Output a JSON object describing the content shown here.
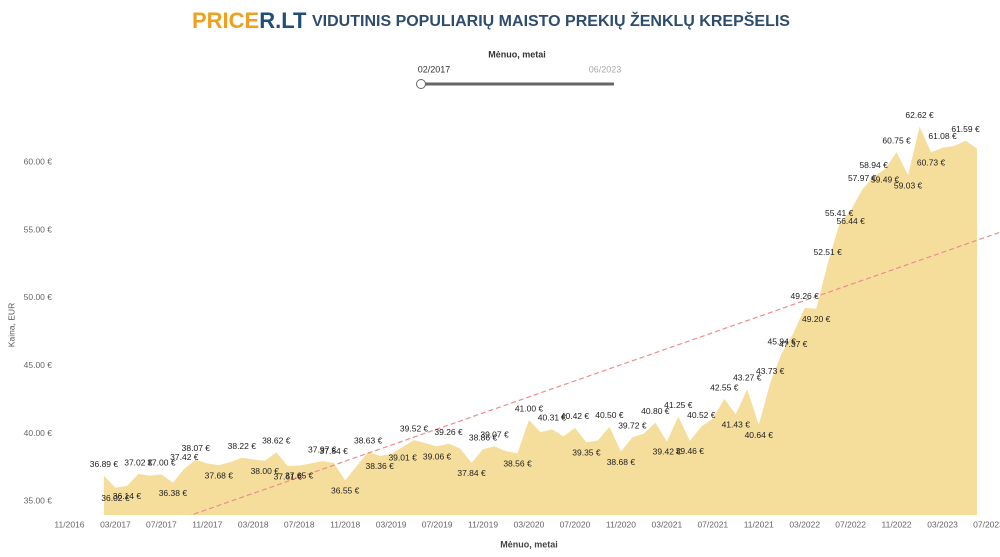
{
  "header": {
    "logo_parts": [
      "PRICE",
      "R.LT"
    ],
    "title": "VIDUTINIS POPULIARIŲ MAISTO PREKIŲ ŽENKLŲ KREPŠELIS"
  },
  "filter": {
    "title": "Mėnuo, metai",
    "from": "02/2017",
    "to": "06/2023"
  },
  "chart_data": {
    "type": "area",
    "x_label": "Mėnuo, metai",
    "y_label": "Kaina, EUR",
    "color": "#f5dd9c",
    "x": [
      "02/2017",
      "03/2017",
      "04/2017",
      "05/2017",
      "06/2017",
      "07/2017",
      "08/2017",
      "09/2017",
      "10/2017",
      "11/2017",
      "12/2017",
      "01/2018",
      "02/2018",
      "03/2018",
      "04/2018",
      "05/2018",
      "06/2018",
      "07/2018",
      "08/2018",
      "09/2018",
      "10/2018",
      "11/2018",
      "12/2018",
      "01/2019",
      "02/2019",
      "03/2019",
      "04/2019",
      "05/2019",
      "06/2019",
      "07/2019",
      "08/2019",
      "09/2019",
      "10/2019",
      "11/2019",
      "12/2019",
      "01/2020",
      "02/2020",
      "03/2020",
      "04/2020",
      "05/2020",
      "06/2020",
      "07/2020",
      "08/2020",
      "09/2020",
      "10/2020",
      "11/2020",
      "12/2020",
      "01/2021",
      "02/2021",
      "03/2021",
      "04/2021",
      "05/2021",
      "06/2021",
      "07/2021",
      "08/2021",
      "09/2021",
      "10/2021",
      "11/2021",
      "12/2021",
      "01/2022",
      "02/2022",
      "03/2022",
      "04/2022",
      "05/2022",
      "06/2022",
      "07/2022",
      "08/2022",
      "09/2022",
      "10/2022",
      "11/2022",
      "12/2022",
      "01/2023",
      "02/2023",
      "03/2023",
      "04/2023",
      "05/2023",
      "06/2023"
    ],
    "values": [
      36.89,
      36.02,
      36.14,
      37.02,
      36.9,
      37.0,
      36.38,
      37.42,
      38.07,
      37.8,
      37.68,
      37.9,
      38.22,
      38.1,
      38.0,
      38.62,
      37.61,
      37.65,
      37.8,
      37.97,
      37.84,
      36.55,
      37.6,
      38.63,
      38.36,
      38.5,
      39.01,
      39.52,
      39.3,
      39.06,
      39.26,
      38.9,
      37.84,
      38.86,
      39.07,
      38.7,
      38.56,
      41.0,
      40.1,
      40.31,
      39.8,
      40.42,
      39.35,
      39.5,
      40.5,
      38.68,
      39.72,
      40.0,
      40.8,
      39.42,
      41.25,
      39.46,
      40.52,
      41.1,
      42.55,
      41.43,
      43.27,
      40.64,
      43.73,
      45.94,
      47.37,
      49.26,
      49.2,
      52.51,
      55.41,
      56.44,
      57.97,
      58.94,
      59.49,
      60.75,
      59.03,
      62.62,
      60.73,
      61.08,
      61.2,
      61.59,
      61.0
    ],
    "value_labels": [
      "36.89 €",
      "36.02 €",
      "36.14 €",
      "37.02 €",
      null,
      "37.00 €",
      "36.38 €",
      "37.42 €",
      "38.07 €",
      null,
      "37.68 €",
      null,
      "38.22 €",
      null,
      "38.00 €",
      "38.62 €",
      "37.61 €",
      "37.65 €",
      null,
      "37.97 €",
      "37.84 €",
      "36.55 €",
      null,
      "38.63 €",
      "38.36 €",
      null,
      "39.01 €",
      "39.52 €",
      null,
      "39.06 €",
      "39.26 €",
      null,
      "37.84 €",
      "38.86 €",
      "39.07 €",
      null,
      "38.56 €",
      "41.00 €",
      null,
      "40.31 €",
      null,
      "40.42 €",
      "39.35 €",
      null,
      "40.50 €",
      "38.68 €",
      "39.72 €",
      null,
      "40.80 €",
      "39.42 €",
      "41.25 €",
      "39.46 €",
      "40.52 €",
      null,
      "42.55 €",
      "41.43 €",
      "43.27 €",
      "40.64 €",
      "43.73 €",
      "45.94 €",
      "47.37 €",
      "49.26 €",
      "49.20 €",
      "52.51 €",
      "55.41 €",
      "56.44 €",
      "57.97 €",
      "58.94 €",
      "59.49 €",
      "60.75 €",
      "59.03 €",
      "62.62 €",
      "60.73 €",
      "61.08 €",
      null,
      "61.59 €",
      null
    ],
    "trend": {
      "color": "#f08c8c",
      "x": [
        "02/2017",
        "06/2023"
      ],
      "values": [
        31.75,
        54.25
      ]
    },
    "xlim": [
      "10/2016",
      "08/2023"
    ],
    "xticks": [
      "11/2016",
      "03/2017",
      "07/2017",
      "11/2017",
      "03/2018",
      "07/2018",
      "11/2018",
      "03/2019",
      "07/2019",
      "11/2019",
      "03/2020",
      "07/2020",
      "11/2020",
      "03/2021",
      "07/2021",
      "11/2021",
      "03/2022",
      "07/2022",
      "11/2022",
      "03/2023",
      "07/2023"
    ],
    "ylim": [
      34,
      64
    ],
    "yticks": [
      {
        "value": 35,
        "label": "35.00 €"
      },
      {
        "value": 40,
        "label": "40.00 €"
      },
      {
        "value": 45,
        "label": "45.00 €"
      },
      {
        "value": 50,
        "label": "50.00 €"
      },
      {
        "value": 55,
        "label": "55.00 €"
      },
      {
        "value": 60,
        "label": "60.00 €"
      }
    ]
  }
}
